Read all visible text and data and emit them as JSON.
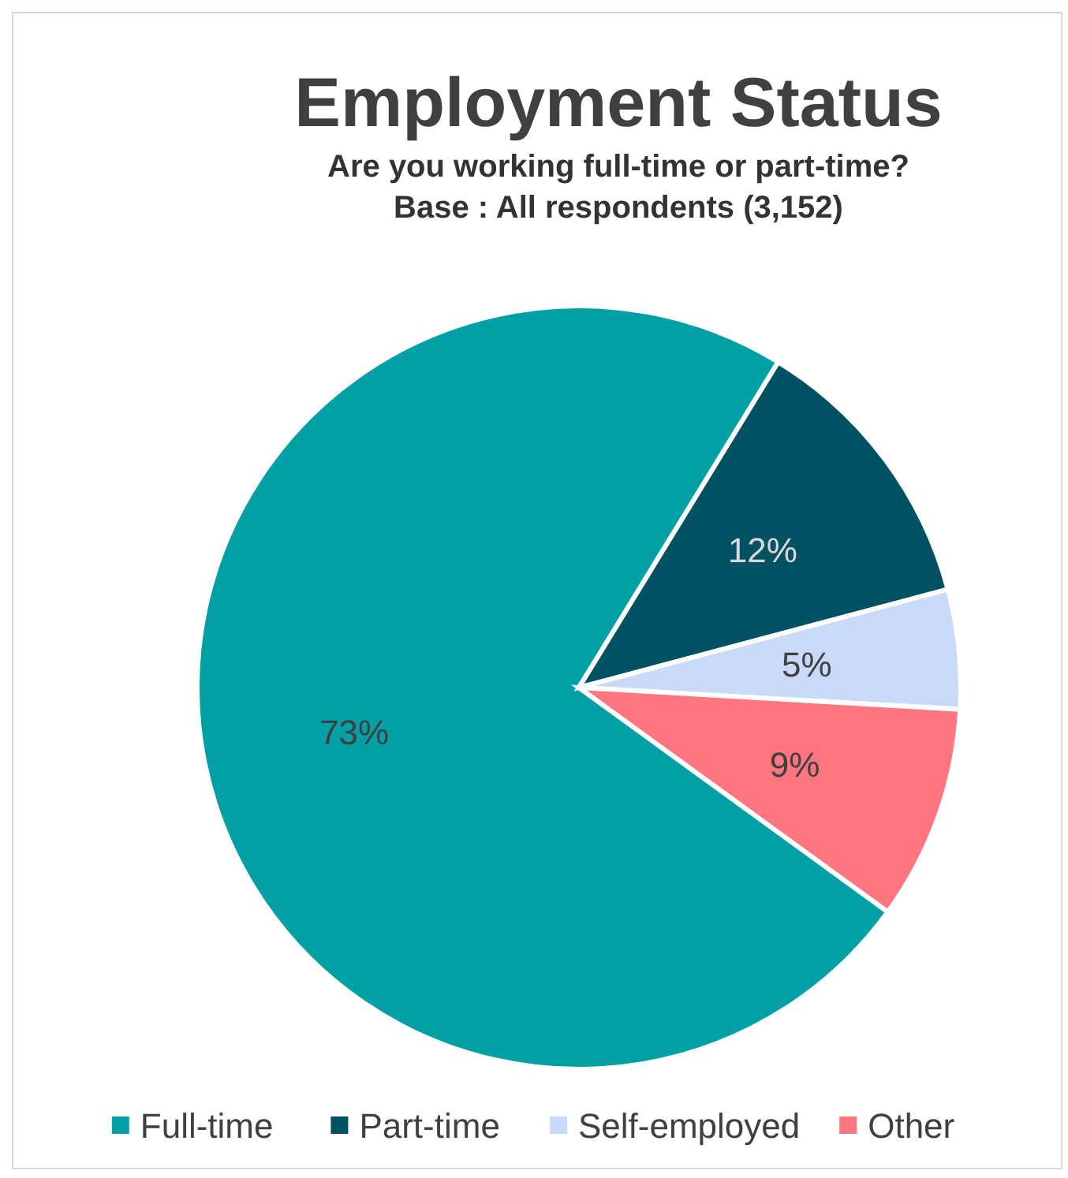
{
  "chart_data": {
    "type": "pie",
    "title": "Employment Status",
    "subtitle": "Are you working full-time or part-time?\nBase : All respondents (3,152)",
    "categories": [
      "Full-time",
      "Part-time",
      "Self-employed",
      "Other"
    ],
    "values": [
      73,
      12,
      5,
      9
    ],
    "colors": [
      "#00a0a6",
      "#005262",
      "#c9daf8",
      "#ff7680"
    ],
    "value_labels": [
      "73%",
      "12%",
      "5%",
      "9%"
    ],
    "legend": "bottom"
  }
}
